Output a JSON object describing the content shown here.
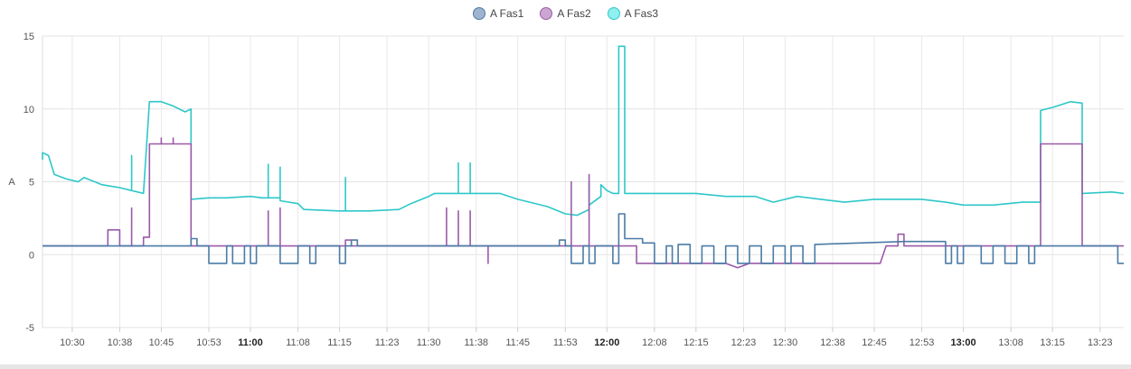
{
  "chart_data": {
    "type": "line",
    "ylabel": "A",
    "ylim": [
      -5,
      15
    ],
    "yticks": [
      -5,
      0,
      5,
      10,
      15
    ],
    "xlim": [
      "10:25",
      "13:27"
    ],
    "grid": true,
    "legend_position": "top-center",
    "x_tick_labels": [
      {
        "t": "10:30",
        "bold": false
      },
      {
        "t": "10:38",
        "bold": false
      },
      {
        "t": "10:45",
        "bold": false
      },
      {
        "t": "10:53",
        "bold": false
      },
      {
        "t": "11:00",
        "bold": true
      },
      {
        "t": "11:08",
        "bold": false
      },
      {
        "t": "11:15",
        "bold": false
      },
      {
        "t": "11:23",
        "bold": false
      },
      {
        "t": "11:30",
        "bold": false
      },
      {
        "t": "11:38",
        "bold": false
      },
      {
        "t": "11:45",
        "bold": false
      },
      {
        "t": "11:53",
        "bold": false
      },
      {
        "t": "12:00",
        "bold": true
      },
      {
        "t": "12:08",
        "bold": false
      },
      {
        "t": "12:15",
        "bold": false
      },
      {
        "t": "12:23",
        "bold": false
      },
      {
        "t": "12:30",
        "bold": false
      },
      {
        "t": "12:38",
        "bold": false
      },
      {
        "t": "12:45",
        "bold": false
      },
      {
        "t": "12:53",
        "bold": false
      },
      {
        "t": "13:00",
        "bold": true
      },
      {
        "t": "13:08",
        "bold": false
      },
      {
        "t": "13:15",
        "bold": false
      },
      {
        "t": "13:23",
        "bold": false
      }
    ],
    "series": [
      {
        "name": "A Fas1",
        "color": "#4a7ba6",
        "points": [
          [
            "10:25",
            0.6
          ],
          [
            "10:50",
            0.6
          ],
          [
            "10:50",
            1.1
          ],
          [
            "10:51",
            1.1
          ],
          [
            "10:51",
            0.6
          ],
          [
            "10:53",
            0.6
          ],
          [
            "10:53",
            -0.6
          ],
          [
            "10:56",
            -0.6
          ],
          [
            "10:56",
            0.6
          ],
          [
            "10:57",
            0.6
          ],
          [
            "10:57",
            -0.6
          ],
          [
            "10:59",
            -0.6
          ],
          [
            "10:59",
            0.6
          ],
          [
            "11:00",
            0.6
          ],
          [
            "11:00",
            -0.6
          ],
          [
            "11:01",
            -0.6
          ],
          [
            "11:01",
            0.6
          ],
          [
            "11:05",
            0.6
          ],
          [
            "11:05",
            -0.6
          ],
          [
            "11:08",
            -0.6
          ],
          [
            "11:08",
            0.6
          ],
          [
            "11:10",
            0.6
          ],
          [
            "11:10",
            -0.6
          ],
          [
            "11:11",
            -0.6
          ],
          [
            "11:11",
            0.6
          ],
          [
            "11:15",
            0.6
          ],
          [
            "11:15",
            -0.6
          ],
          [
            "11:16",
            -0.6
          ],
          [
            "11:16",
            0.6
          ],
          [
            "11:17",
            0.6
          ],
          [
            "11:17",
            1.0
          ],
          [
            "11:18",
            1.0
          ],
          [
            "11:18",
            0.6
          ],
          [
            "11:52",
            0.6
          ],
          [
            "11:52",
            1.0
          ],
          [
            "11:53",
            1.0
          ],
          [
            "11:53",
            0.6
          ],
          [
            "11:54",
            0.6
          ],
          [
            "11:54",
            -0.6
          ],
          [
            "11:56",
            -0.6
          ],
          [
            "11:56",
            0.6
          ],
          [
            "11:57",
            0.6
          ],
          [
            "11:57",
            -0.6
          ],
          [
            "11:58",
            -0.6
          ],
          [
            "11:58",
            0.6
          ],
          [
            "12:01",
            0.6
          ],
          [
            "12:01",
            -0.6
          ],
          [
            "12:02",
            -0.6
          ],
          [
            "12:02",
            2.8
          ],
          [
            "12:03",
            2.8
          ],
          [
            "12:03",
            1.1
          ],
          [
            "12:06",
            1.1
          ],
          [
            "12:06",
            0.8
          ],
          [
            "12:08",
            0.8
          ],
          [
            "12:08",
            -0.6
          ],
          [
            "12:10",
            -0.6
          ],
          [
            "12:10",
            0.6
          ],
          [
            "12:11",
            0.6
          ],
          [
            "12:11",
            -0.6
          ],
          [
            "12:12",
            -0.6
          ],
          [
            "12:12",
            0.7
          ],
          [
            "12:14",
            0.7
          ],
          [
            "12:14",
            -0.6
          ],
          [
            "12:16",
            -0.6
          ],
          [
            "12:16",
            0.6
          ],
          [
            "12:18",
            0.6
          ],
          [
            "12:18",
            -0.6
          ],
          [
            "12:20",
            -0.6
          ],
          [
            "12:20",
            0.6
          ],
          [
            "12:22",
            0.6
          ],
          [
            "12:22",
            -0.6
          ],
          [
            "12:24",
            -0.6
          ],
          [
            "12:24",
            0.6
          ],
          [
            "12:26",
            0.6
          ],
          [
            "12:26",
            -0.6
          ],
          [
            "12:28",
            -0.6
          ],
          [
            "12:28",
            0.6
          ],
          [
            "12:30",
            0.6
          ],
          [
            "12:30",
            -0.6
          ],
          [
            "12:31",
            -0.6
          ],
          [
            "12:31",
            0.6
          ],
          [
            "12:33",
            0.6
          ],
          [
            "12:33",
            -0.6
          ],
          [
            "12:35",
            -0.6
          ],
          [
            "12:35",
            0.7
          ],
          [
            "12:50",
            0.9
          ],
          [
            "12:57",
            0.9
          ],
          [
            "12:57",
            -0.6
          ],
          [
            "12:58",
            -0.6
          ],
          [
            "12:58",
            0.6
          ],
          [
            "12:59",
            0.6
          ],
          [
            "12:59",
            -0.6
          ],
          [
            "13:00",
            -0.6
          ],
          [
            "13:00",
            0.6
          ],
          [
            "13:03",
            0.6
          ],
          [
            "13:03",
            -0.6
          ],
          [
            "13:05",
            -0.6
          ],
          [
            "13:05",
            0.6
          ],
          [
            "13:07",
            0.6
          ],
          [
            "13:07",
            -0.6
          ],
          [
            "13:09",
            -0.6
          ],
          [
            "13:09",
            0.6
          ],
          [
            "13:11",
            0.6
          ],
          [
            "13:11",
            -0.6
          ],
          [
            "13:12",
            -0.6
          ],
          [
            "13:12",
            0.6
          ],
          [
            "13:26",
            0.6
          ],
          [
            "13:26",
            -0.6
          ],
          [
            "13:27",
            -0.6
          ]
        ]
      },
      {
        "name": "A Fas2",
        "color": "#9b5aa8",
        "points": [
          [
            "10:25",
            0.6
          ],
          [
            "10:36",
            0.6
          ],
          [
            "10:36",
            1.7
          ],
          [
            "10:38",
            1.7
          ],
          [
            "10:38",
            0.6
          ],
          [
            "10:40",
            0.6
          ],
          [
            "10:40",
            3.2
          ],
          [
            "10:40",
            0.6
          ],
          [
            "10:42",
            0.6
          ],
          [
            "10:42",
            1.2
          ],
          [
            "10:43",
            1.2
          ],
          [
            "10:43",
            7.6
          ],
          [
            "10:45",
            7.6
          ],
          [
            "10:45",
            8.0
          ],
          [
            "10:45",
            7.6
          ],
          [
            "10:47",
            7.6
          ],
          [
            "10:47",
            8.0
          ],
          [
            "10:47",
            7.6
          ],
          [
            "10:50",
            7.6
          ],
          [
            "10:50",
            0.6
          ],
          [
            "11:03",
            0.6
          ],
          [
            "11:03",
            3.0
          ],
          [
            "11:03",
            0.6
          ],
          [
            "11:05",
            0.6
          ],
          [
            "11:05",
            3.2
          ],
          [
            "11:05",
            0.6
          ],
          [
            "11:16",
            0.6
          ],
          [
            "11:16",
            1.0
          ],
          [
            "11:17",
            1.0
          ],
          [
            "11:17",
            0.6
          ],
          [
            "11:33",
            0.6
          ],
          [
            "11:33",
            3.2
          ],
          [
            "11:33",
            0.6
          ],
          [
            "11:35",
            0.6
          ],
          [
            "11:35",
            3.0
          ],
          [
            "11:35",
            0.6
          ],
          [
            "11:37",
            0.6
          ],
          [
            "11:37",
            3.0
          ],
          [
            "11:37",
            0.6
          ],
          [
            "11:40",
            0.6
          ],
          [
            "11:40",
            -0.6
          ],
          [
            "11:40",
            0.6
          ],
          [
            "11:54",
            0.6
          ],
          [
            "11:54",
            5.0
          ],
          [
            "11:54",
            0.6
          ],
          [
            "11:57",
            0.6
          ],
          [
            "11:57",
            5.5
          ],
          [
            "11:57",
            0.6
          ],
          [
            "12:05",
            0.6
          ],
          [
            "12:05",
            -0.6
          ],
          [
            "12:20",
            -0.6
          ],
          [
            "12:22",
            -0.9
          ],
          [
            "12:24",
            -0.6
          ],
          [
            "12:40",
            -0.6
          ],
          [
            "12:45",
            -0.6
          ],
          [
            "12:46",
            -0.6
          ],
          [
            "12:47",
            0.6
          ],
          [
            "12:49",
            0.6
          ],
          [
            "12:49",
            1.4
          ],
          [
            "12:50",
            1.4
          ],
          [
            "12:50",
            0.6
          ],
          [
            "13:13",
            0.6
          ],
          [
            "13:13",
            7.6
          ],
          [
            "13:20",
            7.6
          ],
          [
            "13:20",
            0.6
          ],
          [
            "13:27",
            0.6
          ]
        ]
      },
      {
        "name": "A Fas3",
        "color": "#2ec7c9",
        "points": [
          [
            "10:25",
            6.5
          ],
          [
            "10:25",
            7.0
          ],
          [
            "10:26",
            6.8
          ],
          [
            "10:27",
            5.5
          ],
          [
            "10:29",
            5.2
          ],
          [
            "10:31",
            5.0
          ],
          [
            "10:32",
            5.3
          ],
          [
            "10:35",
            4.8
          ],
          [
            "10:38",
            4.6
          ],
          [
            "10:40",
            4.4
          ],
          [
            "10:40",
            6.8
          ],
          [
            "10:40",
            4.4
          ],
          [
            "10:42",
            4.2
          ],
          [
            "10:43",
            10.5
          ],
          [
            "10:45",
            10.5
          ],
          [
            "10:47",
            10.2
          ],
          [
            "10:49",
            9.8
          ],
          [
            "10:50",
            10.0
          ],
          [
            "10:50",
            3.8
          ],
          [
            "10:53",
            3.9
          ],
          [
            "10:56",
            3.9
          ],
          [
            "11:00",
            4.0
          ],
          [
            "11:02",
            3.9
          ],
          [
            "11:03",
            3.9
          ],
          [
            "11:03",
            6.2
          ],
          [
            "11:03",
            3.9
          ],
          [
            "11:05",
            3.9
          ],
          [
            "11:05",
            6.0
          ],
          [
            "11:05",
            3.7
          ],
          [
            "11:08",
            3.5
          ],
          [
            "11:09",
            3.1
          ],
          [
            "11:15",
            3.0
          ],
          [
            "11:16",
            3.0
          ],
          [
            "11:16",
            5.3
          ],
          [
            "11:16",
            3.0
          ],
          [
            "11:20",
            3.0
          ],
          [
            "11:25",
            3.1
          ],
          [
            "11:27",
            3.5
          ],
          [
            "11:30",
            4.0
          ],
          [
            "11:31",
            4.2
          ],
          [
            "11:35",
            4.2
          ],
          [
            "11:35",
            6.3
          ],
          [
            "11:35",
            4.2
          ],
          [
            "11:37",
            4.2
          ],
          [
            "11:37",
            6.3
          ],
          [
            "11:37",
            4.2
          ],
          [
            "11:42",
            4.2
          ],
          [
            "11:45",
            3.8
          ],
          [
            "11:50",
            3.3
          ],
          [
            "11:53",
            2.8
          ],
          [
            "11:55",
            2.7
          ],
          [
            "11:57",
            3.1
          ],
          [
            "11:57",
            5.0
          ],
          [
            "11:57",
            3.4
          ],
          [
            "11:59",
            4.0
          ],
          [
            "11:59",
            4.8
          ],
          [
            "12:00",
            4.4
          ],
          [
            "12:01",
            4.2
          ],
          [
            "12:02",
            4.2
          ],
          [
            "12:02",
            14.3
          ],
          [
            "12:03",
            14.3
          ],
          [
            "12:03",
            4.2
          ],
          [
            "12:10",
            4.2
          ],
          [
            "12:15",
            4.2
          ],
          [
            "12:20",
            4.0
          ],
          [
            "12:25",
            4.0
          ],
          [
            "12:28",
            3.6
          ],
          [
            "12:32",
            4.0
          ],
          [
            "12:36",
            3.8
          ],
          [
            "12:40",
            3.6
          ],
          [
            "12:45",
            3.8
          ],
          [
            "12:50",
            3.8
          ],
          [
            "12:53",
            3.8
          ],
          [
            "12:57",
            3.6
          ],
          [
            "13:00",
            3.4
          ],
          [
            "13:05",
            3.4
          ],
          [
            "13:10",
            3.6
          ],
          [
            "13:13",
            3.6
          ],
          [
            "13:13",
            9.9
          ],
          [
            "13:15",
            10.1
          ],
          [
            "13:18",
            10.5
          ],
          [
            "13:20",
            10.4
          ],
          [
            "13:20",
            4.2
          ],
          [
            "13:25",
            4.3
          ],
          [
            "13:27",
            4.2
          ]
        ]
      }
    ]
  }
}
